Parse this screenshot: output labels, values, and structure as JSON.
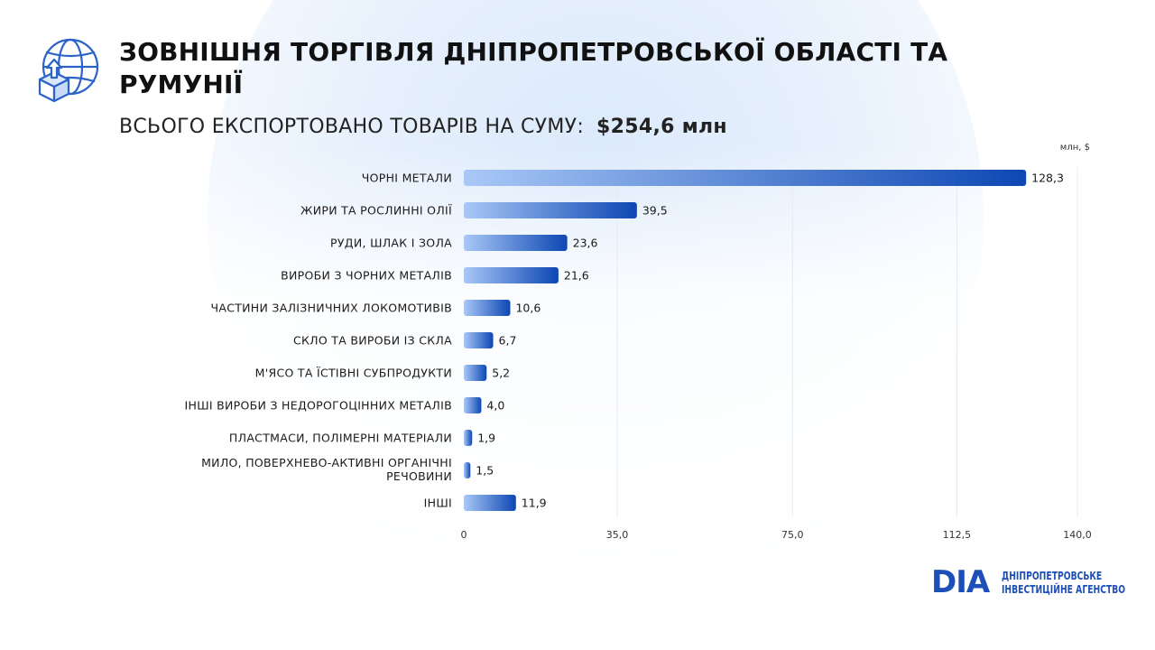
{
  "header": {
    "title": "ЗОВНІШНЯ ТОРГІВЛЯ ДНІПРОПЕТРОВСЬКОЇ ОБЛАСТІ ТА РУМУНІЇ",
    "subtitle_label": "ВСЬОГО ЕКСПОРТОВАНО ТОВАРІВ НА СУМУ:",
    "subtitle_total": "$254,6 млн",
    "icon": "globe-box-upload-icon"
  },
  "logo": {
    "mark": "DIA",
    "line1": "ДНІПРОПЕТРОВСЬКЕ",
    "line2": "ІНВЕСТИЦІЙНЕ АГЕНСТВО"
  },
  "colors": {
    "bar_start": "#a9c8f7",
    "bar_end": "#0d47b3",
    "brand": "#1d4fb8",
    "grid": "#e6e9ee"
  },
  "chart_data": {
    "type": "bar",
    "orientation": "horizontal",
    "unit_label": "млн, $",
    "categories": [
      "ЧОРНІ МЕТАЛИ",
      "ЖИРИ ТА РОСЛИННІ ОЛІЇ",
      "РУДИ, ШЛАК І ЗОЛА",
      "ВИРОБИ З ЧОРНИХ МЕТАЛІВ",
      "ЧАСТИНИ ЗАЛІЗНИЧНИХ ЛОКОМОТИВІВ",
      "СКЛО ТА ВИРОБИ ІЗ СКЛА",
      "М'ЯСО ТА ЇСТІВНІ СУБПРОДУКТИ",
      "ІНШІ ВИРОБИ З НЕДОРОГОЦІННИХ МЕТАЛІВ",
      "ПЛАСТМАСИ, ПОЛІМЕРНІ МАТЕРІАЛИ",
      "МИЛО, ПОВЕРХНЕВО-АКТИВНІ ОРГАНІЧНІ РЕЧОВИНИ",
      "ІНШІ"
    ],
    "category_lines": [
      [
        "ЧОРНІ МЕТАЛИ"
      ],
      [
        "ЖИРИ ТА РОСЛИННІ ОЛІЇ"
      ],
      [
        "РУДИ, ШЛАК І ЗОЛА"
      ],
      [
        "ВИРОБИ З ЧОРНИХ МЕТАЛІВ"
      ],
      [
        "ЧАСТИНИ ЗАЛІЗНИЧНИХ ЛОКОМОТИВІВ"
      ],
      [
        "СКЛО ТА ВИРОБИ ІЗ СКЛА"
      ],
      [
        "М'ЯСО ТА ЇСТІВНІ СУБПРОДУКТИ"
      ],
      [
        "ІНШІ ВИРОБИ З НЕДОРОГОЦІННИХ МЕТАЛІВ"
      ],
      [
        "ПЛАСТМАСИ, ПОЛІМЕРНІ МАТЕРІАЛИ"
      ],
      [
        "МИЛО, ПОВЕРХНЕВО-АКТИВНІ ОРГАНІЧНІ",
        "РЕЧОВИНИ"
      ],
      [
        "ІНШІ"
      ]
    ],
    "values": [
      128.3,
      39.5,
      23.6,
      21.6,
      10.6,
      6.7,
      5.2,
      4.0,
      1.9,
      1.5,
      11.9
    ],
    "value_labels": [
      "128,3",
      "39,5",
      "23,6",
      "21,6",
      "10,6",
      "6,7",
      "5,2",
      "4,0",
      "1,9",
      "1,5",
      "11,9"
    ],
    "x_ticks": [
      0,
      35,
      75,
      112.5,
      140
    ],
    "x_tick_labels": [
      "0",
      "35,0",
      "75,0",
      "112,5",
      "140,0"
    ],
    "xlim": [
      0,
      140
    ],
    "grid": true
  }
}
